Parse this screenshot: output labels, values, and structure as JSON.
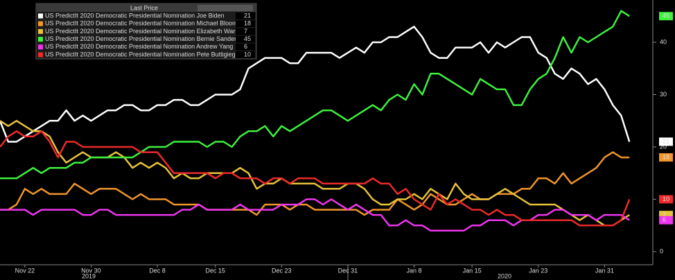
{
  "chart_data": {
    "type": "line",
    "legend_title": "Last Price",
    "categories": [
      null,
      null,
      null,
      "Nov 22",
      null,
      null,
      null,
      null,
      null,
      null,
      null,
      "Nov 30",
      null,
      null,
      null,
      null,
      null,
      null,
      null,
      "Dec 8",
      null,
      null,
      null,
      null,
      null,
      null,
      "Dec 15",
      null,
      null,
      null,
      null,
      null,
      null,
      null,
      "Dec 23",
      null,
      null,
      null,
      null,
      null,
      null,
      null,
      "Dec 31",
      null,
      null,
      null,
      null,
      null,
      null,
      null,
      "Jan 8",
      null,
      null,
      null,
      null,
      null,
      null,
      "Jan 15",
      null,
      null,
      null,
      null,
      null,
      null,
      null,
      "Jan 23",
      null,
      null,
      null,
      null,
      null,
      null,
      null,
      "Jan 31",
      null,
      null,
      null
    ],
    "years": [
      "2019",
      "2020"
    ],
    "ylim": [
      0,
      48
    ],
    "yticks": [
      0,
      10,
      20,
      30,
      40
    ],
    "series": [
      {
        "name": "US PredictIt 2020 Democratic Presidential Nomination Joe Biden",
        "color": "#ffffff",
        "values": [
          25,
          21,
          21,
          22,
          23,
          24,
          25,
          25,
          27,
          25,
          26,
          25,
          26,
          27,
          27,
          28,
          28,
          27,
          27,
          28,
          28,
          29,
          29,
          28,
          28,
          29,
          30,
          30,
          30,
          31,
          35,
          36,
          37,
          37,
          37,
          36,
          36,
          38,
          38,
          38,
          38,
          37,
          38,
          39,
          38,
          40,
          40,
          41,
          41,
          42,
          43,
          41,
          38,
          37,
          37,
          39,
          39,
          39,
          40,
          38,
          40,
          39,
          40,
          41,
          41,
          38,
          37,
          34,
          33,
          35,
          34,
          32,
          33,
          31,
          28,
          26,
          21
        ]
      },
      {
        "name": "US PredictIt 2020 Democratic Presidential Nomination Michael Bloomberg",
        "color": "#f0962a",
        "values": [
          8,
          8,
          9,
          12,
          11,
          12,
          11,
          11,
          11,
          13,
          12,
          11,
          12,
          12,
          12,
          11,
          10,
          11,
          10,
          10,
          10,
          9,
          9,
          9,
          9,
          8,
          8,
          8,
          8,
          8,
          8,
          7,
          9,
          9,
          9,
          8,
          9,
          9,
          8,
          8,
          8,
          8,
          8,
          8,
          7,
          8,
          8,
          8,
          10,
          9,
          8,
          9,
          11,
          10,
          9,
          9,
          10,
          11,
          10,
          10,
          11,
          11,
          11,
          12,
          12,
          14,
          14,
          13,
          15,
          13,
          14,
          15,
          16,
          18,
          19,
          18,
          18
        ]
      },
      {
        "name": "US PredictIt 2020 Democratic Presidential Nomination Elizabeth Warren",
        "color": "#e8c33a",
        "values": [
          25,
          24,
          25,
          24,
          23,
          23,
          22,
          19,
          17,
          18,
          19,
          18,
          18,
          18,
          19,
          18,
          16,
          17,
          16,
          17,
          16,
          14,
          15,
          14,
          14,
          15,
          15,
          15,
          15,
          16,
          15,
          12,
          13,
          13,
          14,
          13,
          13,
          13,
          13,
          12,
          12,
          12,
          13,
          13,
          12,
          10,
          9,
          9,
          10,
          10,
          11,
          10,
          12,
          11,
          10,
          13,
          11,
          10,
          10,
          10,
          11,
          12,
          11,
          10,
          9,
          9,
          9,
          9,
          8,
          7,
          6,
          7,
          6,
          5,
          5,
          6,
          7
        ]
      },
      {
        "name": "US PredictIt 2020 Democratic Presidential Nomination Bernie Sanders",
        "color": "#3ef23e",
        "values": [
          14,
          14,
          14,
          15,
          16,
          15,
          16,
          16,
          16,
          17,
          17,
          18,
          18,
          18,
          18,
          18,
          18,
          19,
          20,
          20,
          20,
          21,
          21,
          21,
          21,
          20,
          21,
          21,
          20,
          22,
          23,
          23,
          24,
          22,
          24,
          23,
          24,
          25,
          26,
          27,
          27,
          26,
          25,
          26,
          27,
          28,
          27,
          29,
          30,
          29,
          32,
          30,
          34,
          34,
          33,
          32,
          31,
          30,
          33,
          32,
          31,
          31,
          28,
          28,
          31,
          33,
          34,
          37,
          41,
          38,
          41,
          40,
          41,
          42,
          43,
          46,
          45
        ]
      },
      {
        "name": "US PredictIt 2020 Democratic Presidential Nomination Andrew Yang",
        "color": "#ee35ee",
        "values": [
          8,
          8,
          8,
          8,
          7,
          8,
          8,
          8,
          8,
          8,
          7,
          7,
          8,
          8,
          7,
          7,
          7,
          7,
          7,
          7,
          7,
          7,
          8,
          8,
          9,
          8,
          8,
          8,
          8,
          9,
          8,
          8,
          8,
          8,
          9,
          9,
          9,
          10,
          10,
          9,
          10,
          9,
          8,
          9,
          8,
          7,
          7,
          5,
          5,
          6,
          5,
          5,
          4,
          4,
          4,
          4,
          4,
          5,
          5,
          6,
          6,
          6,
          5,
          6,
          6,
          7,
          7,
          8,
          8,
          7,
          7,
          7,
          6,
          7,
          7,
          7,
          6
        ]
      },
      {
        "name": "US PredictIt 2020 Democratic Presidential Nomination Pete Buttigieg",
        "color": "#ee2a2a",
        "values": [
          20,
          22,
          23,
          22,
          22,
          23,
          21,
          18,
          21,
          21,
          20,
          20,
          20,
          20,
          20,
          20,
          20,
          19,
          19,
          19,
          17,
          15,
          15,
          15,
          15,
          15,
          14,
          15,
          15,
          14,
          14,
          14,
          13,
          14,
          14,
          13,
          14,
          14,
          14,
          13,
          13,
          13,
          13,
          13,
          13,
          14,
          13,
          13,
          11,
          12,
          10,
          9,
          8,
          11,
          9,
          10,
          9,
          8,
          8,
          7,
          8,
          7,
          7,
          6,
          6,
          6,
          6,
          6,
          6,
          6,
          5,
          5,
          5,
          5,
          5,
          6,
          10
        ]
      }
    ]
  }
}
